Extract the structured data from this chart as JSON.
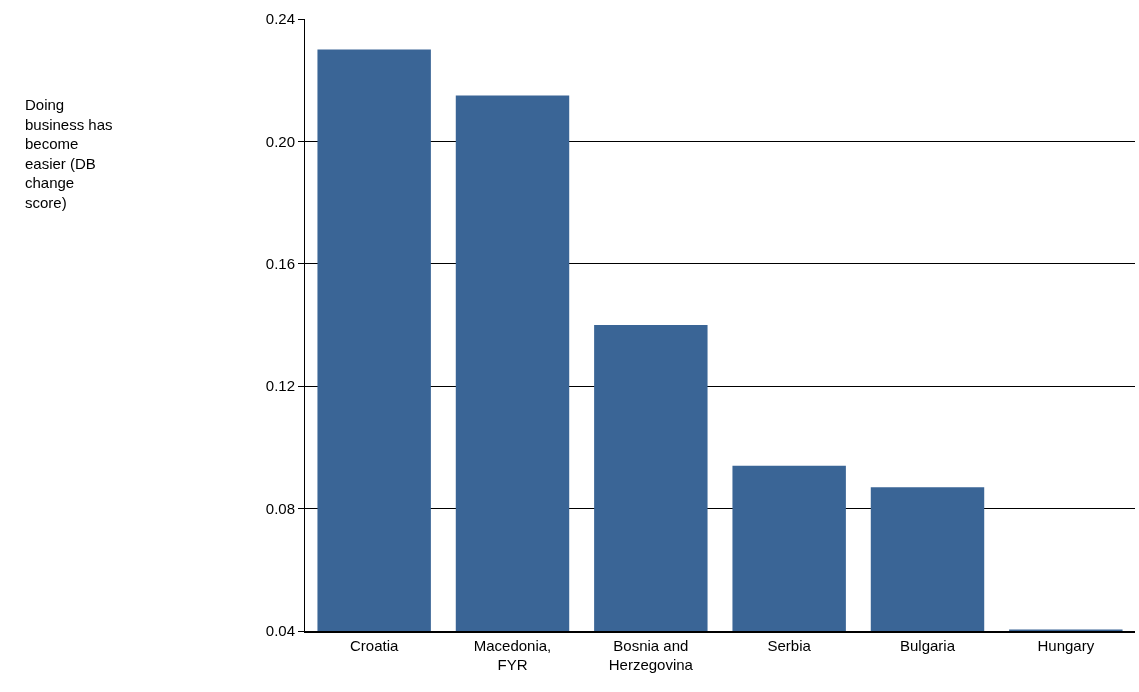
{
  "chart_data": {
    "type": "bar",
    "annotations": [
      "Doing business has become easier (DB change score)"
    ],
    "categories": [
      "Croatia",
      "Macedonia, FYR",
      "Bosnia and Herzegovina",
      "Serbia",
      "Bulgaria",
      "Hungary"
    ],
    "values": [
      0.23,
      0.215,
      0.14,
      0.094,
      0.087,
      0.0405
    ],
    "color": "#3a6596",
    "ylim": [
      0.04,
      0.24
    ],
    "yticks": [
      0.04,
      0.08,
      0.12,
      0.16,
      {
        "value": 0.2,
        "label": "0.20"
      },
      0.24
    ],
    "grid": "y"
  }
}
